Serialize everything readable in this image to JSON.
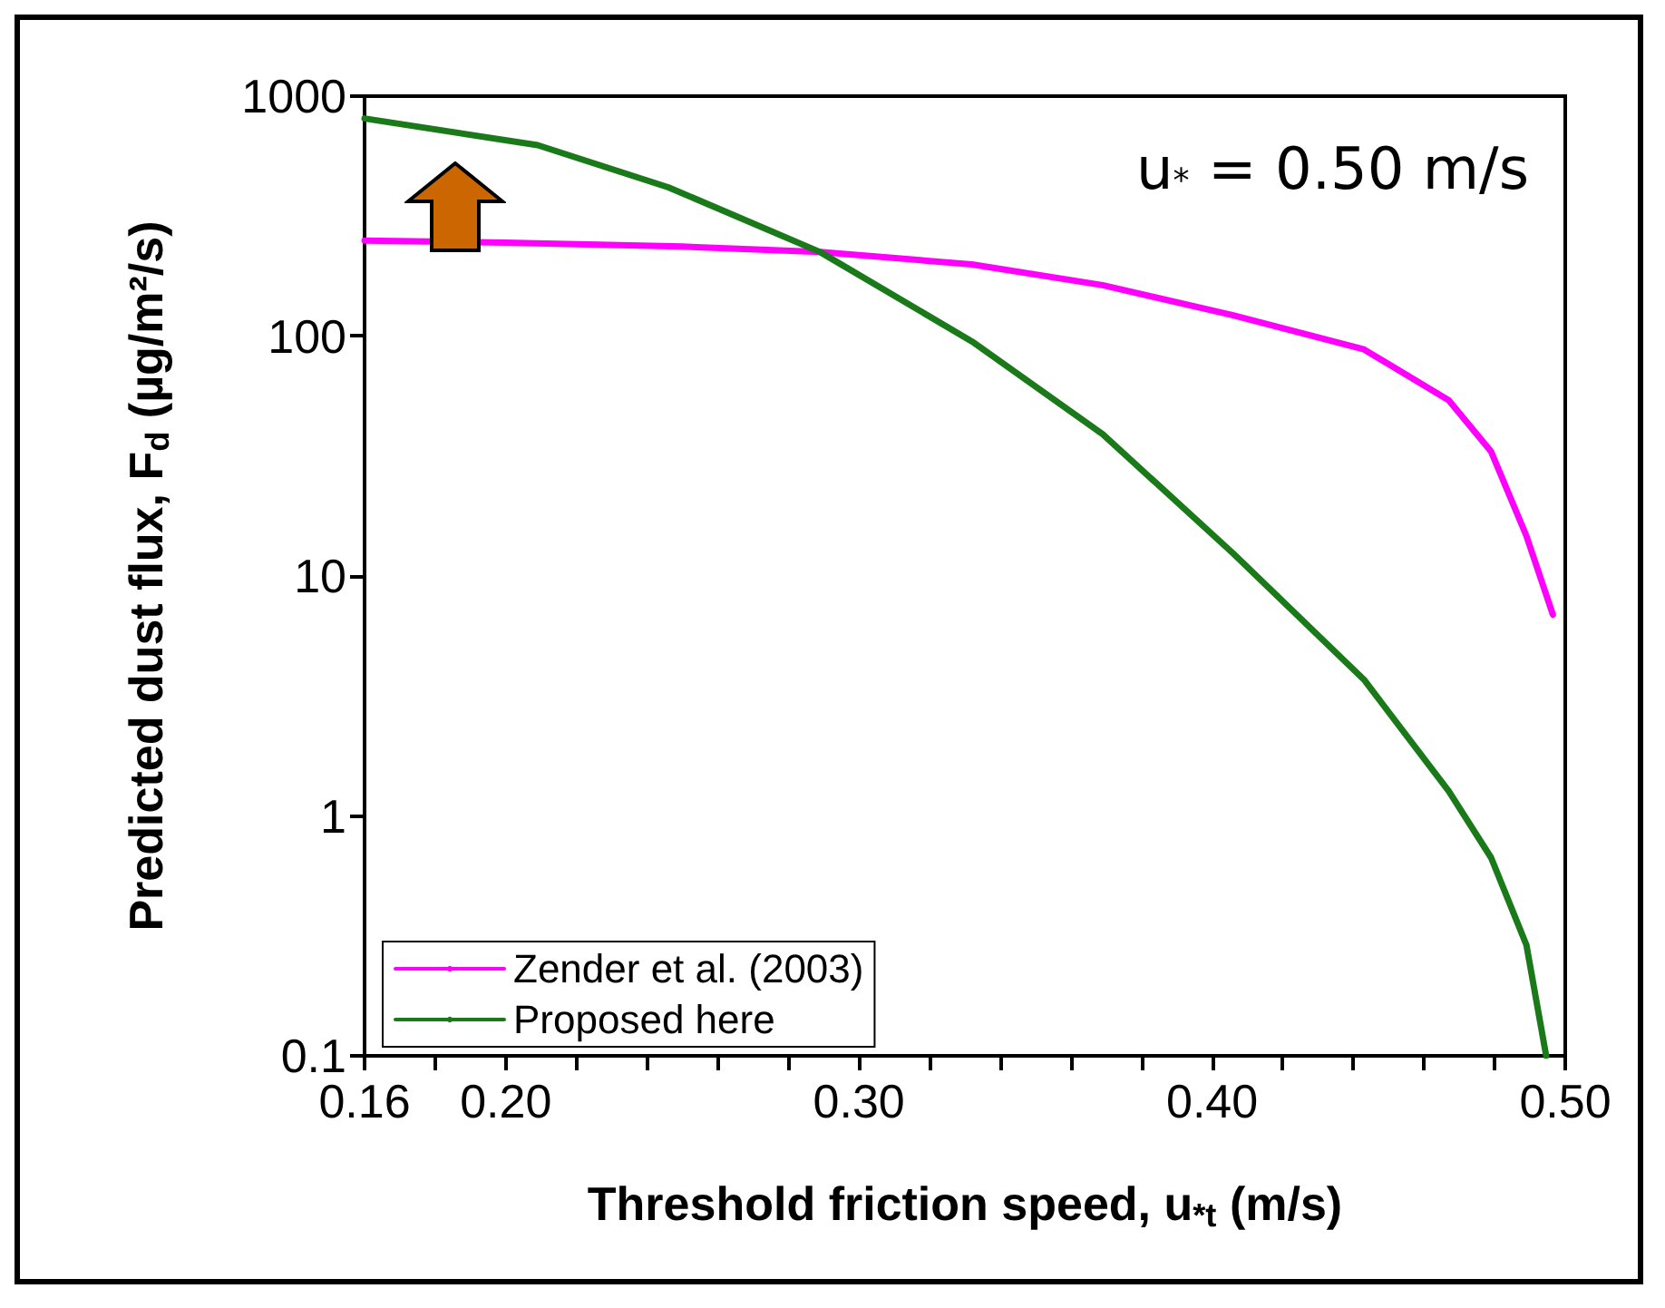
{
  "chart_data": {
    "type": "line",
    "xlabel": "Threshold friction speed, u$_{*t}$ (m/s)",
    "ylabel": "Predicted dust flux, F$_{d}$ (µg/m²/s)",
    "annotations": [
      "u$_{*}$ = 0.50 m/s"
    ],
    "series": [
      {
        "name": "Zender et al. (2003)",
        "color": "#ff00ff",
        "x": [
          0.16,
          0.2,
          0.25,
          0.289,
          0.332,
          0.369,
          0.406,
          0.443,
          0.467,
          0.479,
          0.489,
          0.4965
        ],
        "values": [
          250,
          245,
          236,
          224,
          199,
          163,
          122,
          88,
          54,
          33,
          14.7,
          6.9
        ]
      },
      {
        "name": "Proposed here",
        "color": "#1a7a1a",
        "x": [
          0.16,
          0.209,
          0.246,
          0.289,
          0.332,
          0.369,
          0.406,
          0.443,
          0.467,
          0.479,
          0.489,
          0.4946
        ],
        "values": [
          807,
          625,
          417,
          224,
          95,
          39,
          12.4,
          3.7,
          1.27,
          0.67,
          0.29,
          0.1
        ]
      }
    ],
    "xlim": [
      0.16,
      0.5
    ],
    "xticks": [
      {
        "value": 0.16,
        "label": "0.16"
      },
      {
        "value": 0.18,
        "label": null
      },
      {
        "value": 0.2,
        "label": "0.20"
      },
      {
        "value": 0.22,
        "label": null
      },
      {
        "value": 0.24,
        "label": null
      },
      {
        "value": 0.26,
        "label": null
      },
      {
        "value": 0.28,
        "label": null
      },
      {
        "value": 0.3,
        "label": "0.30"
      },
      {
        "value": 0.32,
        "label": null
      },
      {
        "value": 0.34,
        "label": null
      },
      {
        "value": 0.36,
        "label": null
      },
      {
        "value": 0.38,
        "label": null
      },
      {
        "value": 0.4,
        "label": "0.40"
      },
      {
        "value": 0.42,
        "label": null
      },
      {
        "value": 0.44,
        "label": null
      },
      {
        "value": 0.46,
        "label": null
      },
      {
        "value": 0.48,
        "label": null
      },
      {
        "value": 0.5,
        "label": "0.50"
      }
    ],
    "ylim": [
      0.1,
      1000
    ],
    "yticks": [
      0.1,
      1,
      10,
      100,
      1000
    ],
    "log": "y",
    "legend": "bottom left",
    "grid": false,
    "marker": "none",
    "line_style": "solid"
  }
}
